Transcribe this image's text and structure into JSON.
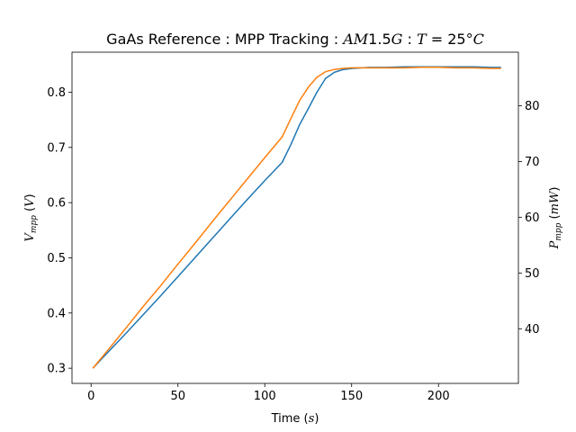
{
  "chart_data": {
    "type": "line",
    "title": {
      "prefix": "GaAs Reference : MPP Tracking : ",
      "spectrum": "AM",
      "spectrum_value": "1.5",
      "spectrum_suffix": "G",
      "sep": " : ",
      "temp_var": "T",
      "temp_eq": " = 25",
      "temp_deg": "°",
      "temp_unit": "C"
    },
    "xlabel": {
      "text": "Time (",
      "unit": "s",
      "close": ")"
    },
    "ylabel_left": {
      "var": "V",
      "sub": "mpp",
      "open": " (",
      "unit": "V",
      "close": ")"
    },
    "ylabel_right": {
      "var": "P",
      "sub": "mpp",
      "open": " (",
      "unit": "mW",
      "close": ")"
    },
    "xlim": [
      -11,
      246
    ],
    "ylim_left": [
      0.2725,
      0.8725
    ],
    "ylim_right": [
      30.2,
      89.6
    ],
    "x_ticks": [
      0,
      50,
      100,
      150,
      200
    ],
    "y_ticks_left": [
      0.3,
      0.4,
      0.5,
      0.6,
      0.7,
      0.8
    ],
    "y_ticks_right": [
      40,
      50,
      60,
      70,
      80
    ],
    "grid": false,
    "series": [
      {
        "axis": "left",
        "color": "#1f77b4",
        "points": [
          [
            1,
            0.3
          ],
          [
            10,
            0.33
          ],
          [
            20,
            0.363
          ],
          [
            30,
            0.397
          ],
          [
            40,
            0.431
          ],
          [
            50,
            0.466
          ],
          [
            60,
            0.501
          ],
          [
            70,
            0.536
          ],
          [
            80,
            0.571
          ],
          [
            90,
            0.606
          ],
          [
            100,
            0.64
          ],
          [
            110,
            0.673
          ],
          [
            115,
            0.705
          ],
          [
            120,
            0.741
          ],
          [
            125,
            0.77
          ],
          [
            130,
            0.8
          ],
          [
            135,
            0.825
          ],
          [
            140,
            0.836
          ],
          [
            145,
            0.841
          ],
          [
            150,
            0.843
          ],
          [
            160,
            0.845
          ],
          [
            170,
            0.845
          ],
          [
            180,
            0.846
          ],
          [
            190,
            0.846
          ],
          [
            200,
            0.846
          ],
          [
            210,
            0.846
          ],
          [
            220,
            0.846
          ],
          [
            230,
            0.845
          ],
          [
            236,
            0.845
          ]
        ]
      },
      {
        "axis": "right",
        "color": "#ff7f0e",
        "points": [
          [
            1,
            32.9
          ],
          [
            10,
            36.3
          ],
          [
            20,
            40.1
          ],
          [
            30,
            44.0
          ],
          [
            40,
            47.7
          ],
          [
            50,
            51.6
          ],
          [
            60,
            55.4
          ],
          [
            70,
            59.3
          ],
          [
            80,
            63.1
          ],
          [
            90,
            66.9
          ],
          [
            100,
            70.7
          ],
          [
            110,
            74.4
          ],
          [
            115,
            77.7
          ],
          [
            120,
            80.9
          ],
          [
            125,
            83.3
          ],
          [
            130,
            85.1
          ],
          [
            135,
            86.1
          ],
          [
            140,
            86.5
          ],
          [
            145,
            86.7
          ],
          [
            150,
            86.8
          ],
          [
            160,
            86.8
          ],
          [
            170,
            86.8
          ],
          [
            180,
            86.8
          ],
          [
            190,
            86.9
          ],
          [
            200,
            86.9
          ],
          [
            210,
            86.8
          ],
          [
            220,
            86.8
          ],
          [
            230,
            86.7
          ],
          [
            236,
            86.7
          ]
        ]
      }
    ]
  }
}
